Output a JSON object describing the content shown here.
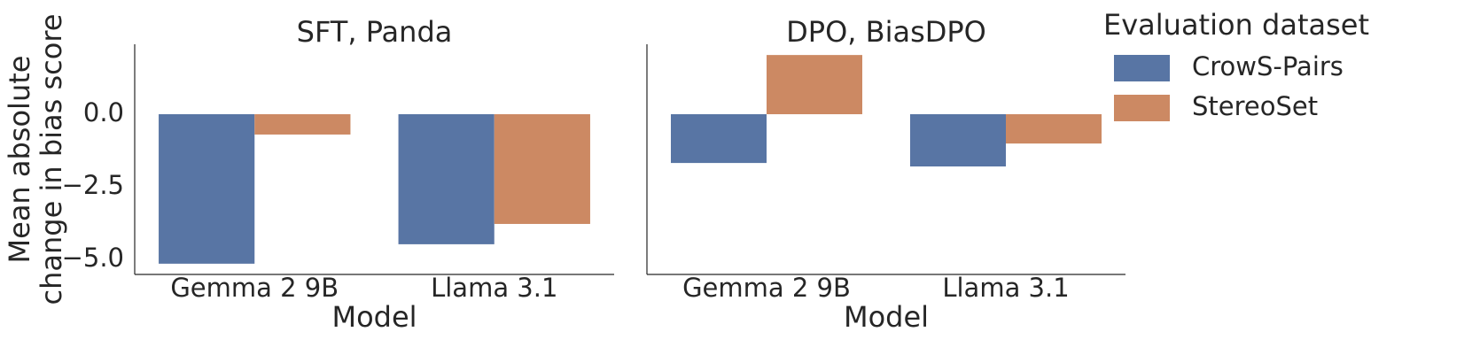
{
  "chart_data": [
    {
      "type": "bar",
      "title": "SFT, Panda",
      "xlabel": "Model",
      "ylabel": [
        "Mean absolute",
        "change in bias score"
      ],
      "categories": [
        "Gemma 2 9B",
        "Llama 3.1"
      ],
      "series": [
        {
          "name": "CrowS-Pairs",
          "color": "#5875a4",
          "values": [
            -5.15,
            -4.48
          ]
        },
        {
          "name": "StereoSet",
          "color": "#cc8963",
          "values": [
            -0.7,
            -3.78
          ]
        }
      ],
      "ylim": [
        -5.52,
        2.41
      ],
      "yticks": [
        {
          "value": 0,
          "label": "0.0"
        },
        {
          "value": -2.5,
          "label": "−2.5"
        },
        {
          "value": -5,
          "label": "−5.0"
        }
      ],
      "legend_title": "Evaluation dataset"
    },
    {
      "type": "bar",
      "title": "DPO, BiasDPO",
      "xlabel": "Model",
      "categories": [
        "Gemma 2 9B",
        "Llama 3.1"
      ],
      "series": [
        {
          "name": "CrowS-Pairs",
          "color": "#5875a4",
          "values": [
            -1.68,
            -1.8
          ]
        },
        {
          "name": "StereoSet",
          "color": "#cc8963",
          "values": [
            2.04,
            -1.01
          ]
        }
      ],
      "ylim": [
        -5.52,
        2.41
      ]
    }
  ]
}
